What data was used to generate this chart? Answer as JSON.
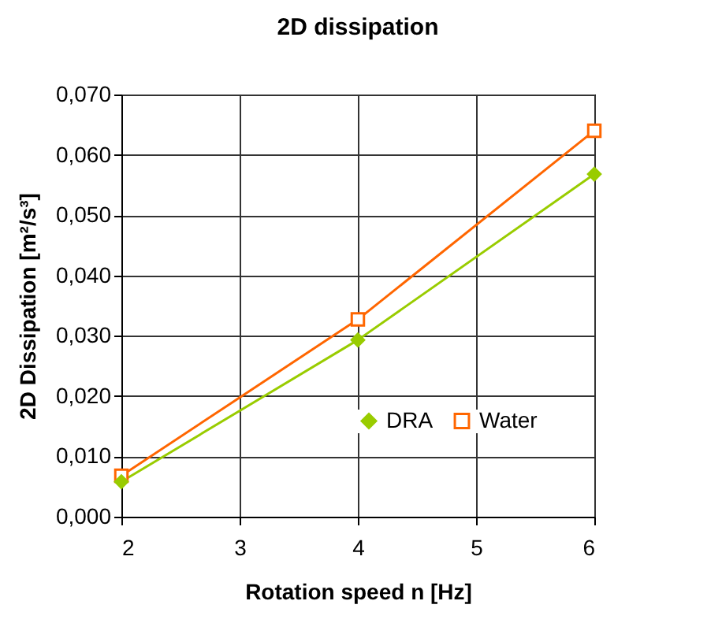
{
  "chart_data": {
    "type": "line",
    "title": "2D dissipation",
    "xlabel": "Rotation speed n [Hz]",
    "ylabel": "2D Dissipation [m²/s³]",
    "x": [
      2,
      4,
      6
    ],
    "series": [
      {
        "name": "DRA",
        "color": "#99cc00",
        "marker": "diamond",
        "values": [
          0.0058,
          0.0293,
          0.0568
        ]
      },
      {
        "name": "Water",
        "color": "#ff6600",
        "marker": "square",
        "values": [
          0.0068,
          0.0327,
          0.064
        ]
      }
    ],
    "xlim": [
      2,
      6
    ],
    "xticks": [
      2,
      3,
      4,
      5,
      6
    ],
    "ylim": [
      0,
      0.07
    ],
    "yticks": [
      {
        "value": 0,
        "label": "0,000"
      },
      {
        "value": 0.01,
        "label": "0,010"
      },
      {
        "value": 0.02,
        "label": "0,020"
      },
      {
        "value": 0.03,
        "label": "0,030"
      },
      {
        "value": 0.04,
        "label": "0,040"
      },
      {
        "value": 0.05,
        "label": "0,050"
      },
      {
        "value": 0.06,
        "label": "0,060"
      },
      {
        "value": 0.07,
        "label": "0,070"
      }
    ],
    "grid": true,
    "legend": "bottom right",
    "line_style": "solid"
  }
}
